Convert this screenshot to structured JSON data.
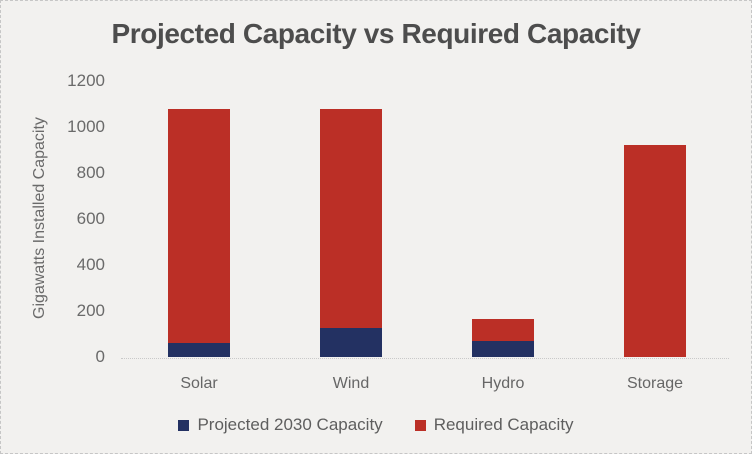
{
  "chart_data": {
    "type": "bar",
    "stacked": true,
    "title": "Projected Capacity vs Required Capacity",
    "ylabel": "Gigawatts Installed Capacity",
    "xlabel": "",
    "categories": [
      "Solar",
      "Wind",
      "Hydro",
      "Storage"
    ],
    "series": [
      {
        "name": "Projected 2030 Capacity",
        "color": "#233162",
        "values": [
          60,
          125,
          70,
          0
        ]
      },
      {
        "name": "Required Capacity",
        "color": "#BB2F26",
        "values": [
          1020,
          955,
          95,
          920
        ]
      }
    ],
    "stacked_totals": [
      1080,
      1080,
      165,
      920
    ],
    "ylim": [
      0,
      1200
    ],
    "yticks": [
      0,
      200,
      400,
      600,
      800,
      1000,
      1200
    ],
    "grid": false,
    "legend_position": "bottom"
  },
  "colors": {
    "background": "#F2F1EF",
    "frame_border": "#C6C6C6",
    "title_text": "#4D4D4D",
    "axis_text": "#6A6A6A",
    "axis_line": "#C9C9C9",
    "projected_series": "#233162",
    "required_series": "#BB2F26"
  }
}
